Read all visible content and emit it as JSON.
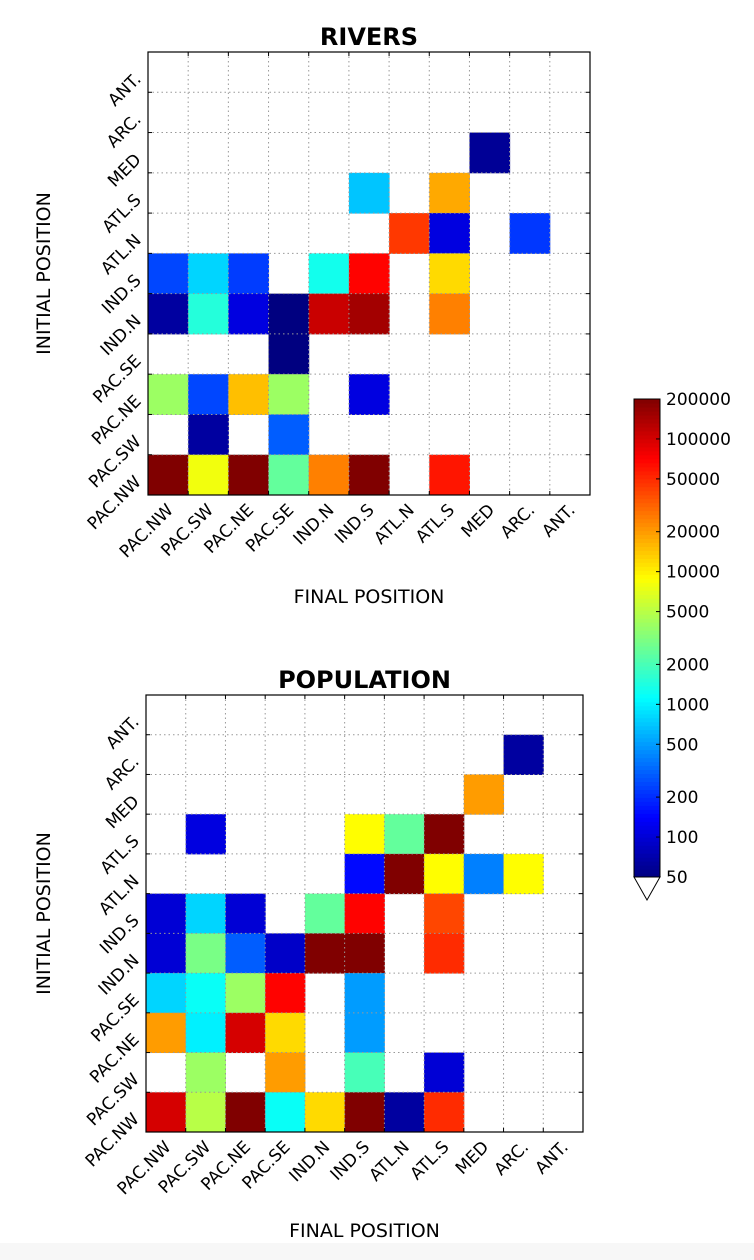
{
  "chart_data": [
    {
      "type": "heatmap",
      "title": "RIVERS",
      "xlabel": "FINAL POSITION",
      "ylabel": "INITIAL POSITION",
      "x_categories": [
        "PAC.NW",
        "PAC.SW",
        "PAC.NE",
        "PAC.SE",
        "IND.N",
        "IND.S",
        "ATL.N",
        "ATL.S",
        "MED",
        "ARC.",
        "ANT."
      ],
      "y_categories_top_to_bottom": [
        "ANT.",
        "ARC.",
        "MED",
        "ATL.S",
        "ATL.N",
        "IND.S",
        "IND.N",
        "PAC.SE",
        "PAC.NE",
        "PAC.SW",
        "PAC.NW"
      ],
      "grid": true,
      "values_top_to_bottom": [
        [
          null,
          null,
          null,
          null,
          null,
          null,
          null,
          null,
          null,
          null,
          null
        ],
        [
          null,
          null,
          null,
          null,
          null,
          null,
          null,
          null,
          null,
          null,
          null
        ],
        [
          null,
          null,
          null,
          null,
          null,
          null,
          null,
          null,
          60,
          null,
          null
        ],
        [
          null,
          null,
          null,
          null,
          null,
          700,
          null,
          18000,
          null,
          null,
          null
        ],
        [
          null,
          null,
          null,
          null,
          null,
          null,
          45000,
          110,
          null,
          220,
          null
        ],
        [
          250,
          800,
          230,
          null,
          1300,
          70000,
          null,
          12000,
          null,
          null,
          null
        ],
        [
          65,
          1500,
          110,
          50,
          110000,
          150000,
          null,
          25000,
          null,
          null,
          null
        ],
        [
          null,
          null,
          null,
          50,
          null,
          null,
          null,
          null,
          null,
          null,
          null
        ],
        [
          4000,
          250,
          15000,
          4000,
          null,
          110,
          null,
          null,
          null,
          null,
          null
        ],
        [
          null,
          65,
          null,
          300,
          null,
          null,
          null,
          null,
          null,
          null,
          null
        ],
        [
          200000,
          8000,
          200000,
          2500,
          25000,
          200000,
          null,
          60000,
          null,
          null,
          null
        ]
      ]
    },
    {
      "type": "heatmap",
      "title": "POPULATION",
      "xlabel": "FINAL POSITION",
      "ylabel": "INITIAL POSITION",
      "x_categories": [
        "PAC.NW",
        "PAC.SW",
        "PAC.NE",
        "PAC.SE",
        "IND.N",
        "IND.S",
        "ATL.N",
        "ATL.S",
        "MED",
        "ARC.",
        "ANT."
      ],
      "y_categories_top_to_bottom": [
        "ANT.",
        "ARC.",
        "MED",
        "ATL.S",
        "ATL.N",
        "IND.S",
        "IND.N",
        "PAC.SE",
        "PAC.NE",
        "PAC.SW",
        "PAC.NW"
      ],
      "grid": true,
      "values_top_to_bottom": [
        [
          null,
          null,
          null,
          null,
          null,
          null,
          null,
          null,
          null,
          null,
          null
        ],
        [
          null,
          null,
          null,
          null,
          null,
          null,
          null,
          null,
          null,
          65,
          null
        ],
        [
          null,
          null,
          null,
          null,
          null,
          null,
          null,
          null,
          20000,
          null,
          null
        ],
        [
          null,
          110,
          null,
          null,
          null,
          9000,
          2500,
          200000,
          null,
          null,
          null
        ],
        [
          null,
          null,
          null,
          null,
          null,
          150,
          200000,
          9000,
          400,
          9000,
          null
        ],
        [
          100,
          800,
          100,
          null,
          2500,
          70000,
          null,
          40000,
          null,
          null,
          null
        ],
        [
          100,
          3000,
          300,
          90,
          200000,
          200000,
          null,
          50000,
          null,
          null,
          null
        ],
        [
          800,
          1200,
          4000,
          70000,
          null,
          500,
          null,
          null,
          null,
          null,
          null
        ],
        [
          20000,
          1000,
          100000,
          12000,
          null,
          500,
          null,
          null,
          null,
          null,
          null
        ],
        [
          null,
          4000,
          null,
          20000,
          null,
          2000,
          null,
          100,
          null,
          null,
          null
        ],
        [
          100000,
          5000,
          200000,
          1200,
          12000,
          200000,
          65,
          50000,
          null,
          null,
          null
        ]
      ]
    }
  ],
  "colorbar": {
    "colormap": "jet",
    "scale": "log",
    "range": [
      50,
      200000
    ],
    "extend_below_color": "#ffffff",
    "tick_labels": [
      "200000",
      "100000",
      "50000",
      "20000",
      "10000",
      "5000",
      "2000",
      "1000",
      "500",
      "200",
      "100",
      "50"
    ]
  }
}
